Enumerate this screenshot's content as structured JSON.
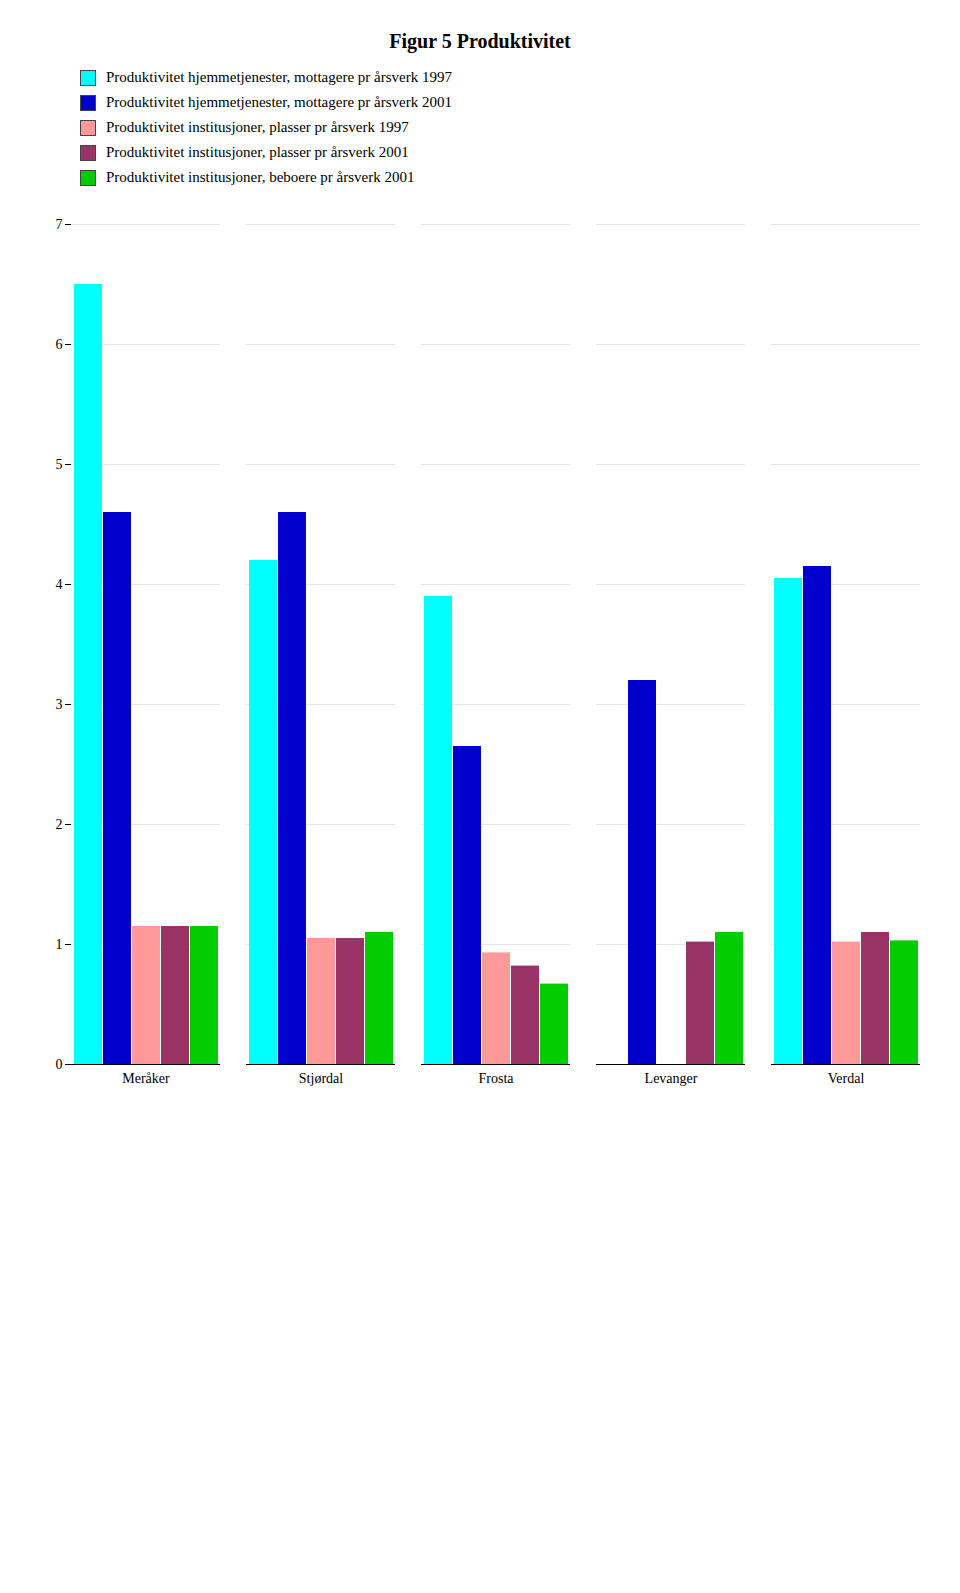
{
  "chart_data": {
    "type": "bar",
    "title": "Figur 5 Produktivitet",
    "categories": [
      "Meråker",
      "Stjørdal",
      "Frosta",
      "Levanger",
      "Verdal"
    ],
    "series": [
      {
        "name": "Produktivitet hjemmetjenester, mottagere pr årsverk 1997",
        "color": "#00FFFF",
        "values": [
          6.5,
          4.2,
          3.9,
          0.0,
          4.05
        ]
      },
      {
        "name": "Produktivitet hjemmetjenester, mottagere pr årsverk 2001",
        "color": "#0000CC",
        "values": [
          4.6,
          4.6,
          2.65,
          3.2,
          4.15
        ]
      },
      {
        "name": "Produktivitet institusjoner, plasser pr årsverk 1997",
        "color": "#FF9999",
        "values": [
          1.15,
          1.05,
          0.93,
          0.0,
          1.02
        ]
      },
      {
        "name": "Produktivitet institusjoner, plasser pr årsverk 2001",
        "color": "#993366",
        "values": [
          1.15,
          1.05,
          0.82,
          1.02,
          1.1
        ]
      },
      {
        "name": "Produktivitet institusjoner, beboere pr årsverk 2001",
        "color": "#00CC00",
        "values": [
          1.15,
          1.1,
          0.67,
          1.1,
          1.03
        ]
      }
    ],
    "ylim": [
      0,
      7
    ],
    "yticks": [
      0,
      1,
      2,
      3,
      4,
      5,
      6,
      7
    ],
    "grid": true,
    "legend": "top"
  }
}
